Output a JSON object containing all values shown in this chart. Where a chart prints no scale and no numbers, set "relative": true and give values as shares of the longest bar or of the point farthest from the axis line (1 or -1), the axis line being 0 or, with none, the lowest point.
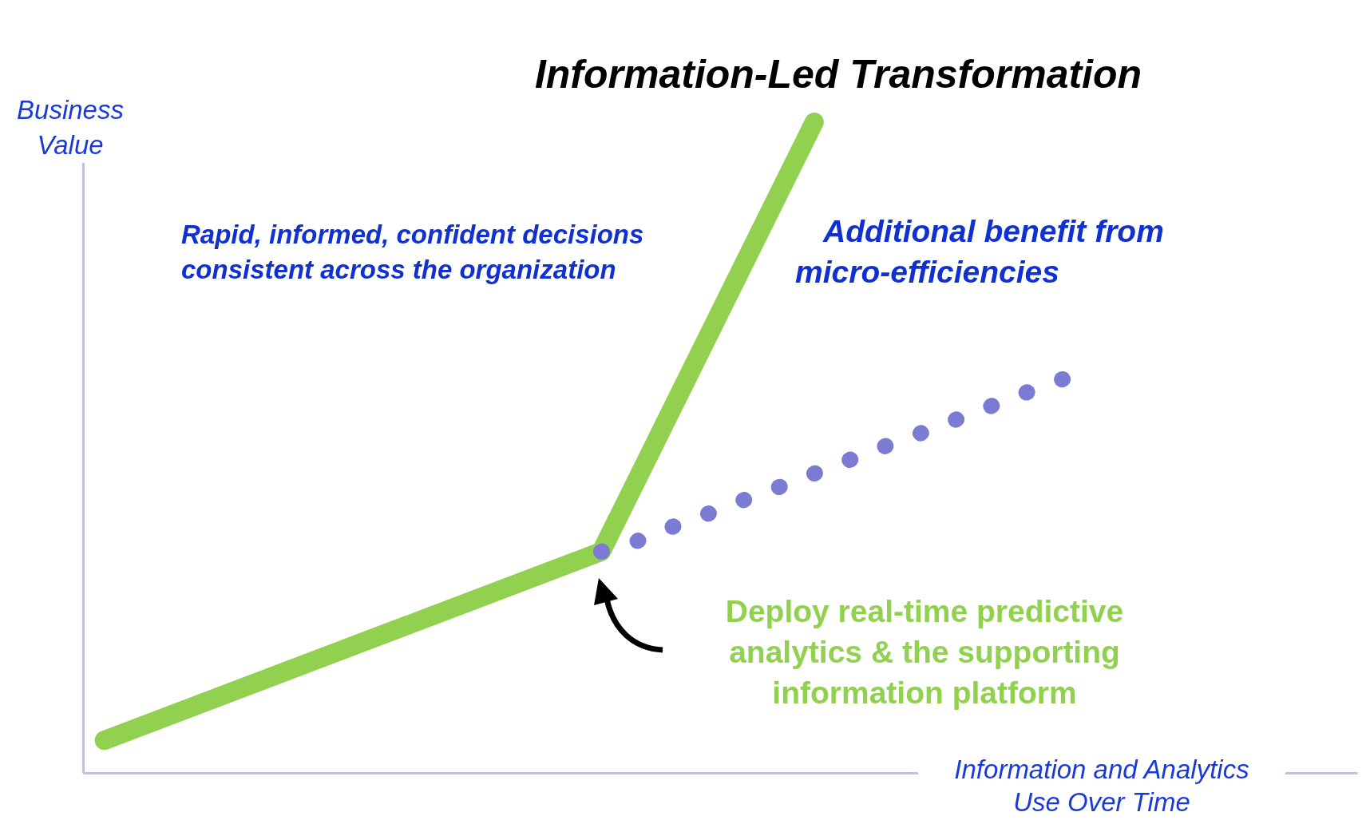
{
  "chart_data": {
    "type": "line",
    "relative": true,
    "title": "Information-Led Transformation",
    "xlabel": "Information and Analytics\nUse Over Time",
    "ylabel": "Business\nValue",
    "tick_labels": false,
    "grid": false,
    "categories": [
      null,
      null,
      null,
      null,
      null,
      null,
      null,
      null,
      null,
      null,
      null,
      null,
      null,
      null,
      null,
      null,
      null,
      null,
      null,
      null,
      null,
      null,
      null,
      null,
      null,
      null,
      null,
      null
    ],
    "series": [
      {
        "color": "#92d050",
        "values": [
          0.05,
          null,
          null,
          null,
          null,
          null,
          null,
          null,
          null,
          null,
          null,
          null,
          null,
          null,
          0.34,
          null,
          null,
          null,
          null,
          null,
          1.0,
          null,
          null,
          null,
          null,
          null,
          null,
          null
        ]
      },
      {
        "type": "line",
        "line_style": "dotted",
        "color": "#7b7bd4",
        "values": [
          null,
          null,
          null,
          null,
          null,
          null,
          null,
          null,
          null,
          null,
          null,
          null,
          null,
          null,
          0.34,
          0.356,
          0.378,
          0.398,
          0.419,
          0.439,
          0.46,
          0.481,
          0.502,
          0.522,
          0.543,
          0.564,
          0.585,
          0.605
        ]
      }
    ],
    "annotations": [
      "Rapid, informed, confident decisions\nconsistent across the organization",
      "Additional benefit from\nmicro-efficiencies",
      "Deploy real-time predictive\nanalytics & the supporting\ninformation platform"
    ]
  }
}
